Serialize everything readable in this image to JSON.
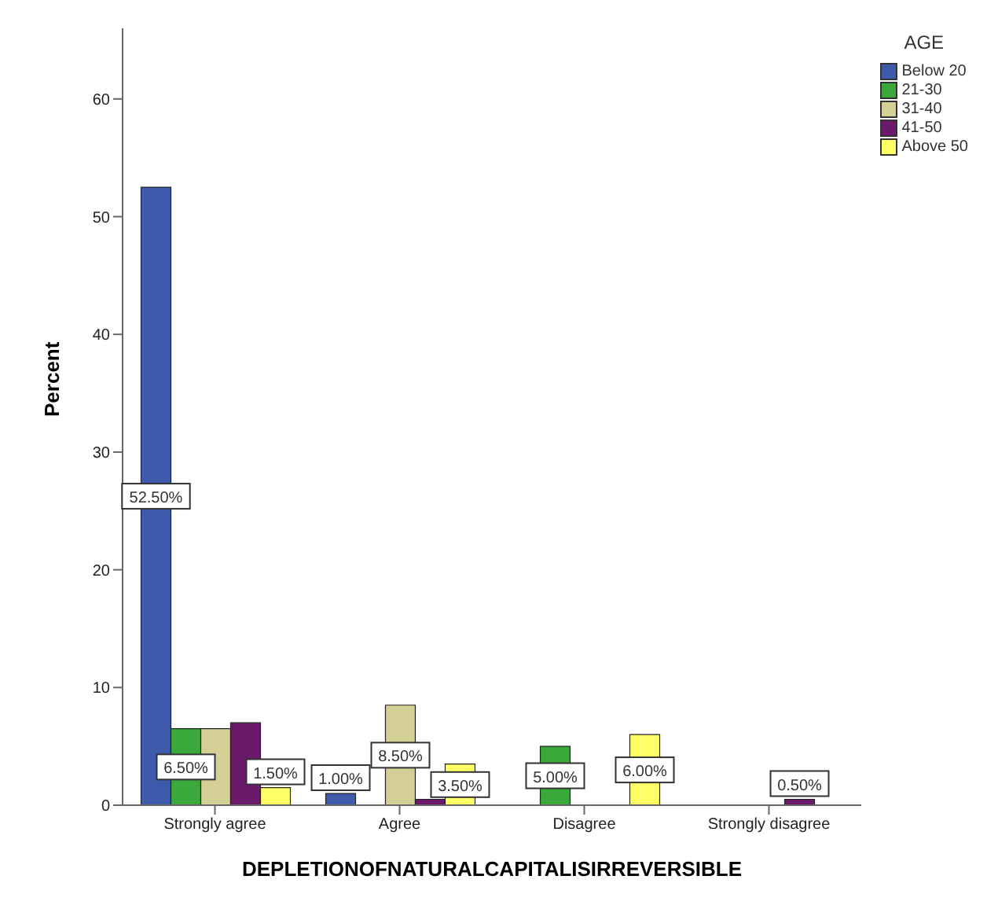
{
  "chart_data": {
    "type": "bar",
    "xlabel": "DEPLETIONOFNATURALCAPITALISIRREVERSIBLE",
    "ylabel": "Percent",
    "legend_title": "AGE",
    "categories": [
      "Strongly agree",
      "Agree",
      "Disagree",
      "Strongly disagree"
    ],
    "series": [
      {
        "name": "Below 20",
        "color": "#3d5aab",
        "values": [
          52.5,
          1.0,
          null,
          null
        ],
        "value_labels": [
          "52.50%",
          "1.00%",
          null,
          null
        ]
      },
      {
        "name": "21-30",
        "color": "#3aa83a",
        "values": [
          6.5,
          null,
          5.0,
          null
        ],
        "value_labels": [
          "6.50%",
          null,
          "5.00%",
          null
        ]
      },
      {
        "name": "31-40",
        "color": "#d4cf94",
        "values": [
          6.5,
          8.5,
          null,
          null
        ],
        "value_labels": [
          null,
          "8.50%",
          null,
          null
        ]
      },
      {
        "name": "41-50",
        "color": "#6b1a6b",
        "values": [
          7.0,
          0.5,
          null,
          0.5
        ],
        "value_labels": [
          null,
          null,
          null,
          "0.50%"
        ]
      },
      {
        "name": "Above 50",
        "color": "#ffff66",
        "values": [
          1.5,
          3.5,
          6.0,
          null
        ],
        "value_labels": [
          "1.50%",
          "3.50%",
          "6.00%",
          null
        ]
      }
    ],
    "ylim": [
      0,
      66
    ],
    "yticks": [
      0,
      10,
      20,
      30,
      40,
      50,
      60
    ],
    "grid": false,
    "legend": "top right"
  }
}
